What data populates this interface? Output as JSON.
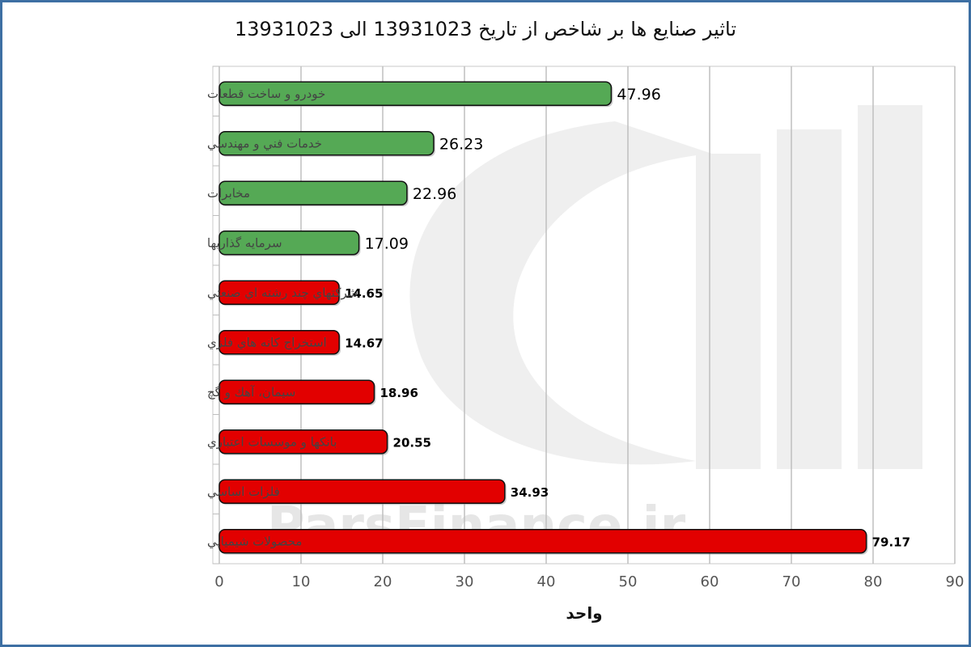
{
  "chart_data": {
    "type": "bar",
    "orientation": "horizontal",
    "title": "تاثیر صنایع ها بر شاخص از تاریخ 13931023 الی 13931023",
    "xlabel": "واحد",
    "ylabel": "",
    "xlim": [
      0,
      90
    ],
    "xticks": [
      "0",
      "10",
      "20",
      "30",
      "40",
      "50",
      "60",
      "70",
      "80",
      "90"
    ],
    "grid": true,
    "legend": "none",
    "categories": [
      "خودرو و ساخت قطعات",
      "خدمات فني و مهندسي",
      "مخابرات",
      "سرمايه گذاريها",
      "شركتهاي چند رشته اي صنعتي",
      "استخراج كانه هاي فلزي",
      "سيمان، آهك و گچ",
      "بانكها و موسسات اعتباري",
      "فلزات اساسي",
      "محصولات شيميايي"
    ],
    "values": [
      47.96,
      26.23,
      22.96,
      17.09,
      14.65,
      14.67,
      18.96,
      20.55,
      34.93,
      79.17
    ],
    "value_labels": [
      "47.96",
      "26.23",
      "22.96",
      "17.09",
      "14.65",
      "14.67",
      "18.96",
      "20.55",
      "34.93",
      "79.17"
    ],
    "directions": [
      "positive",
      "positive",
      "positive",
      "positive",
      "negative",
      "negative",
      "negative",
      "negative",
      "negative",
      "negative"
    ],
    "colors": {
      "positive": "#55a955",
      "negative": "#e20000",
      "bar_border": "#111111",
      "grid": "#bfbfbf",
      "frame": "#3d6fa3"
    }
  },
  "watermark": {
    "text": "ParsFinance.ir"
  }
}
